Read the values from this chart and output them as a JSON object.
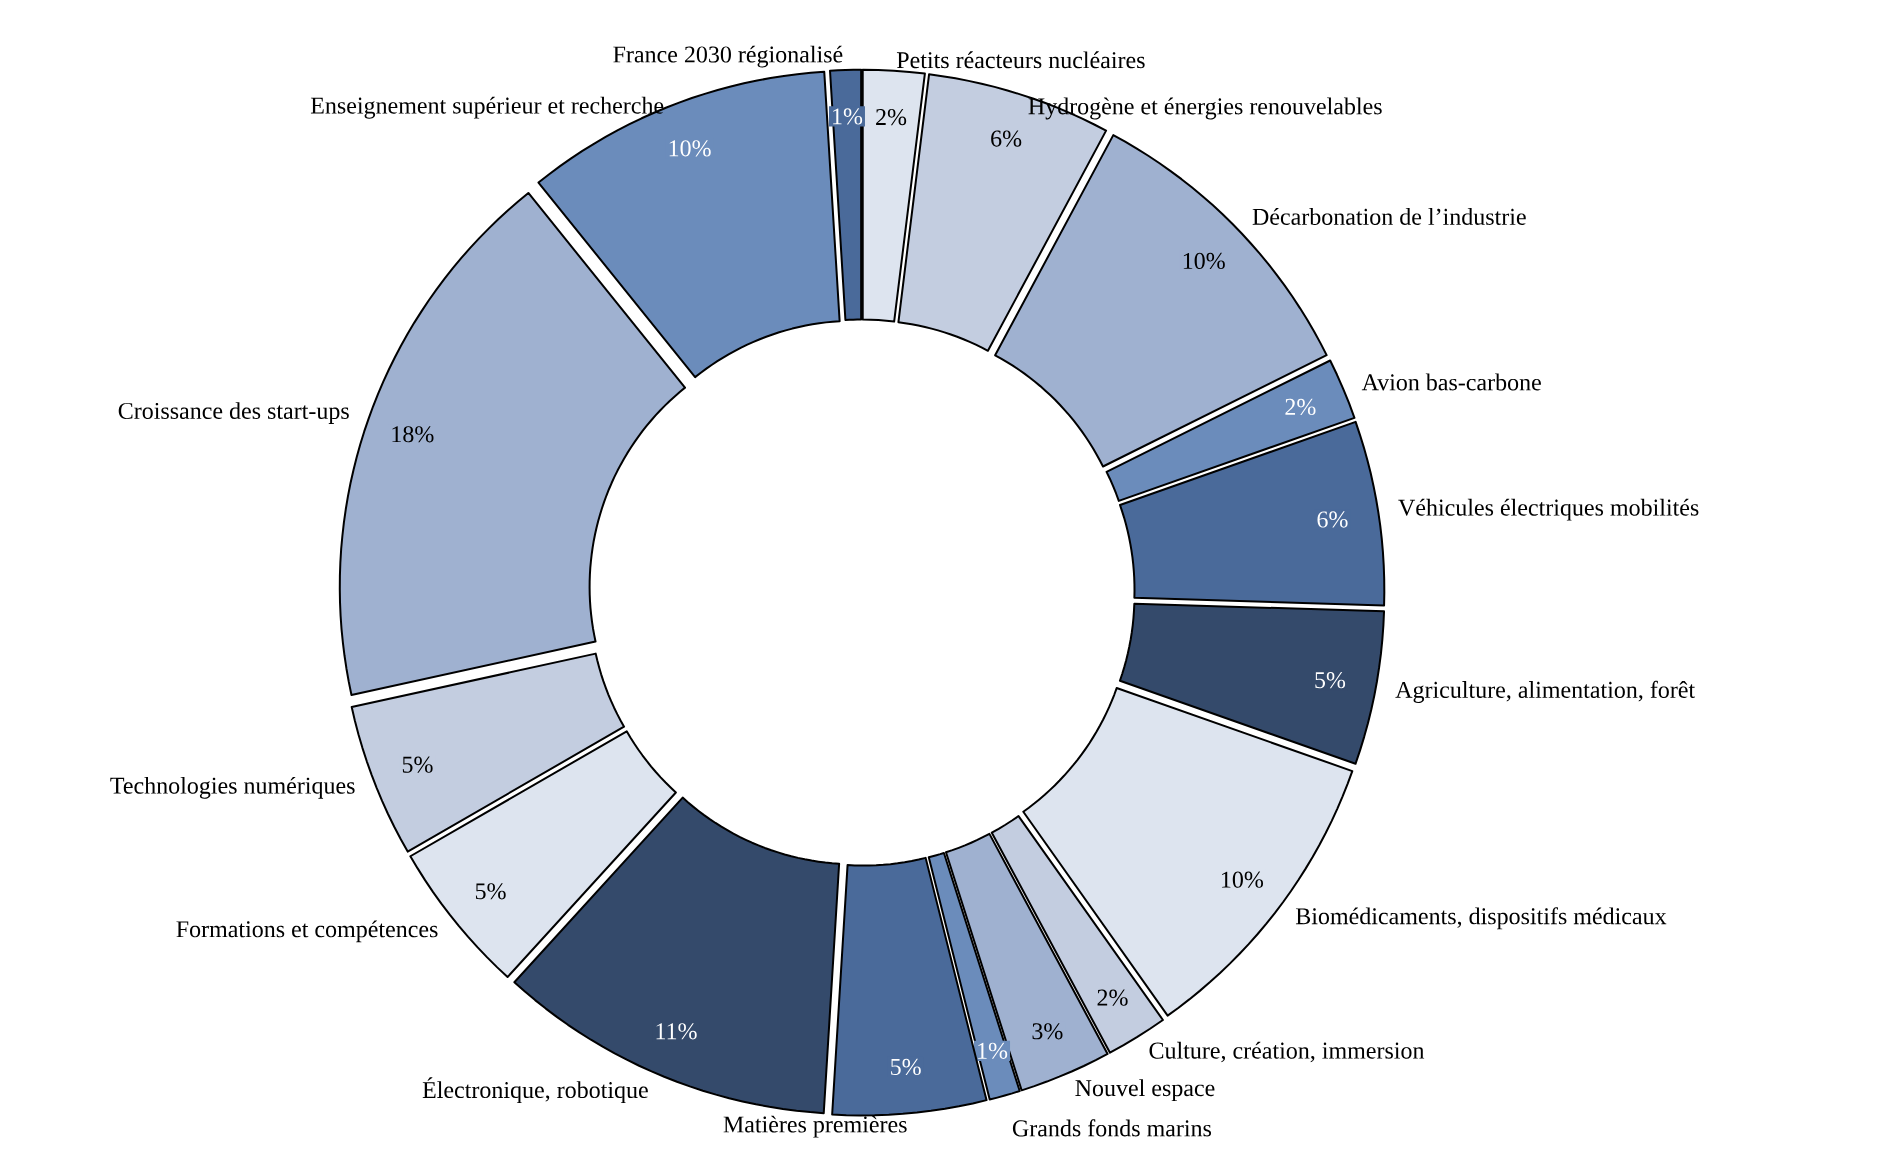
{
  "chart_data": {
    "type": "donut",
    "data_labels": true,
    "categories": [
      "Petits réacteurs nucléaires",
      "Hydrogène et énergies renouvelables",
      "Décarbonation de l’industrie",
      "Avion bas-carbone",
      "Véhicules électriques mobilités",
      "Agriculture, alimentation, forêt",
      "Biomédicaments, dispositifs médicaux",
      "Culture, création, immersion",
      "Nouvel espace",
      "Grands fonds marins",
      "Matières premières",
      "Électronique, robotique",
      "Formations et compétences",
      "Technologies numériques",
      "Croissance des start-ups",
      "Enseignement supérieur et recherche",
      "France 2030 régionalisé"
    ],
    "values": [
      2,
      6,
      10,
      2,
      6,
      5,
      10,
      2,
      3,
      1,
      5,
      11,
      5,
      5,
      18,
      10,
      1
    ],
    "value_labels": [
      "2%",
      "6%",
      "10%",
      "2%",
      "6%",
      "5%",
      "10%",
      "2%",
      "3%",
      "1%",
      "5%",
      "11%",
      "5%",
      "5%",
      "18%",
      "10%",
      "1%"
    ],
    "colors": [
      "#dde4ef",
      "#c3cde0",
      "#9fb1d0",
      "#6b8cbb",
      "#4a6a9a",
      "#344a6b",
      "#dde4ef",
      "#c3cde0",
      "#9fb1d0",
      "#6b8cbb",
      "#4a6a9a",
      "#344a6b",
      "#dde4ef",
      "#c3cde0",
      "#9fb1d0",
      "#6b8cbb",
      "#4a6a9a"
    ]
  }
}
